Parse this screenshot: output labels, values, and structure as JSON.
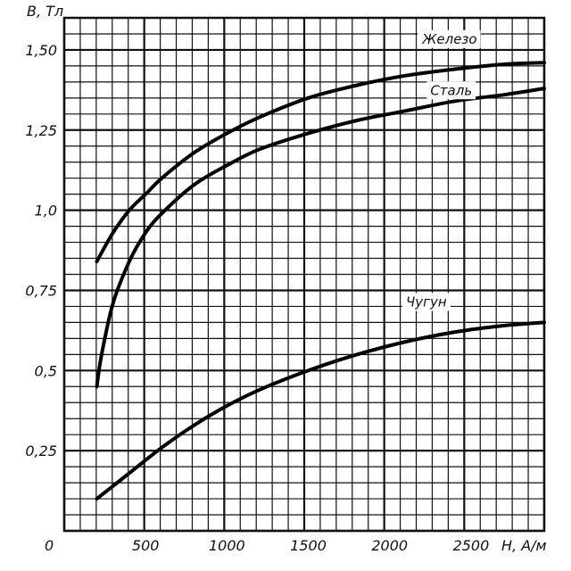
{
  "chart_data": {
    "type": "line",
    "xlabel": "H, А/м",
    "ylabel": "B, Тл",
    "origin_label": "0",
    "xlim": [
      0,
      2950
    ],
    "ylim": [
      0,
      1.6
    ],
    "x_ticks": [
      {
        "value": 500,
        "label": "500"
      },
      {
        "value": 1000,
        "label": "1000"
      },
      {
        "value": 1500,
        "label": "1500"
      },
      {
        "value": 2000,
        "label": "2000"
      },
      {
        "value": 2500,
        "label": "2500"
      }
    ],
    "y_ticks": [
      {
        "value": 0.25,
        "label": "0,25"
      },
      {
        "value": 0.5,
        "label": "0,5"
      },
      {
        "value": 0.75,
        "label": "0,75"
      },
      {
        "value": 1.0,
        "label": "1,0"
      },
      {
        "value": 1.25,
        "label": "1,25"
      },
      {
        "value": 1.5,
        "label": "1,50"
      }
    ],
    "grid": true,
    "series": [
      {
        "name": "Железо",
        "label_at": [
          2200,
          1.52
        ],
        "x": [
          200,
          300,
          400,
          500,
          600,
          800,
          1000,
          1200,
          1500,
          1800,
          2100,
          2400,
          2700,
          2950
        ],
        "y": [
          0.84,
          0.93,
          1.0,
          1.05,
          1.1,
          1.18,
          1.24,
          1.29,
          1.35,
          1.39,
          1.42,
          1.44,
          1.455,
          1.46
        ]
      },
      {
        "name": "Сталь",
        "label_at": [
          2250,
          1.36
        ],
        "x": [
          200,
          230,
          300,
          400,
          500,
          600,
          800,
          1000,
          1200,
          1500,
          1800,
          2100,
          2400,
          2700,
          2950
        ],
        "y": [
          0.45,
          0.55,
          0.71,
          0.84,
          0.93,
          0.99,
          1.08,
          1.14,
          1.19,
          1.24,
          1.28,
          1.31,
          1.34,
          1.36,
          1.38
        ]
      },
      {
        "name": "Чугун",
        "label_at": [
          2100,
          0.7
        ],
        "x": [
          200,
          400,
          600,
          800,
          1000,
          1200,
          1500,
          1800,
          2100,
          2400,
          2700,
          2950
        ],
        "y": [
          0.1,
          0.18,
          0.26,
          0.33,
          0.39,
          0.44,
          0.5,
          0.55,
          0.59,
          0.62,
          0.64,
          0.65
        ]
      }
    ]
  }
}
